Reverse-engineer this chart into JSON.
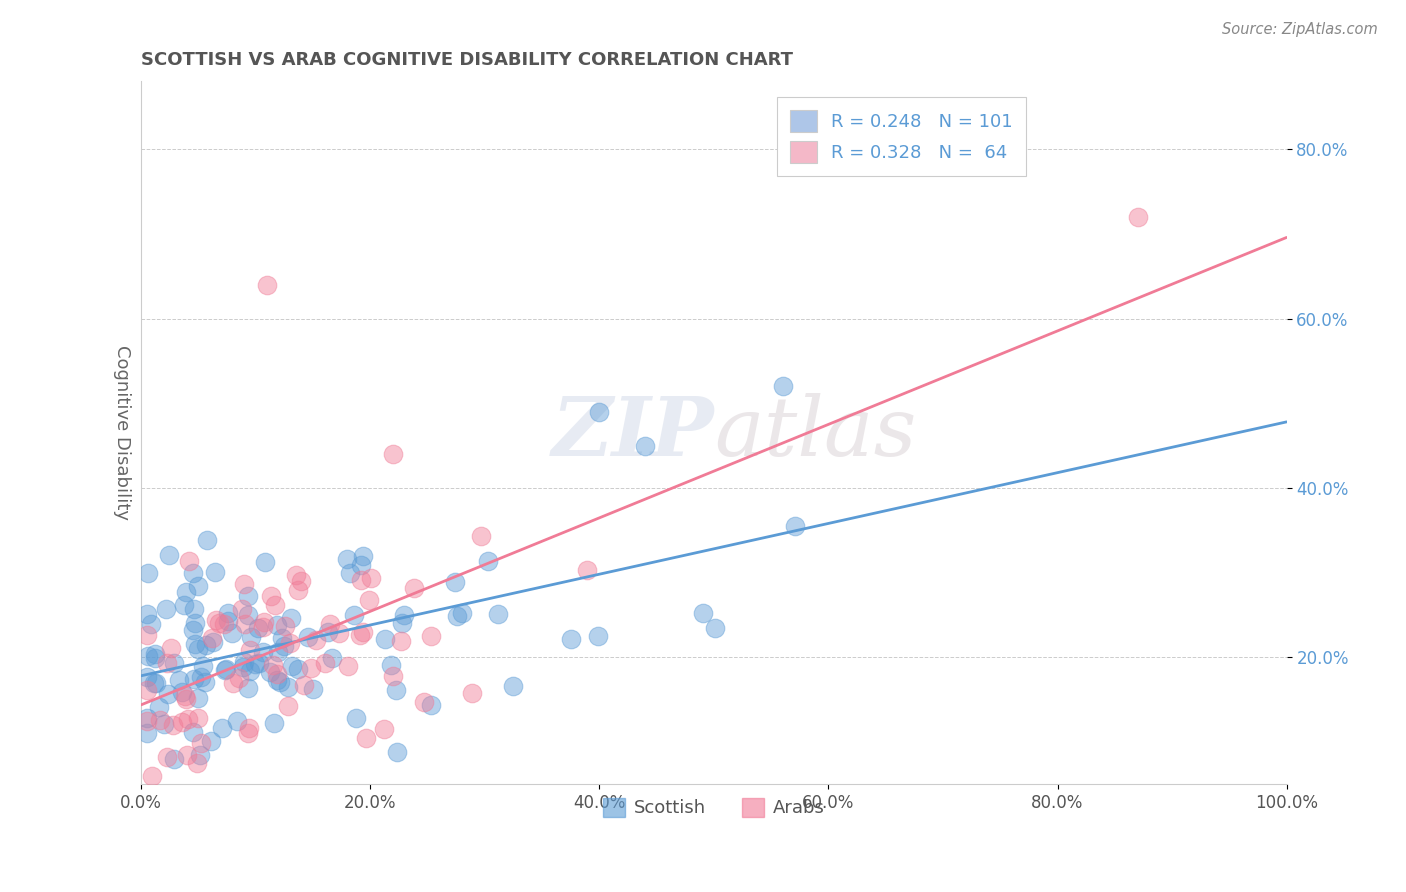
{
  "title": "SCOTTISH VS ARAB COGNITIVE DISABILITY CORRELATION CHART",
  "source": "Source: ZipAtlas.com",
  "ylabel": "Cognitive Disability",
  "xlim": [
    0.0,
    1.0
  ],
  "ylim": [
    0.05,
    0.88
  ],
  "xticks": [
    0.0,
    0.2,
    0.4,
    0.6,
    0.8,
    1.0
  ],
  "xtick_labels": [
    "0.0%",
    "20.0%",
    "40.0%",
    "60.0%",
    "80.0%",
    "100.0%"
  ],
  "ytick_labels": [
    "20.0%",
    "40.0%",
    "60.0%",
    "80.0%"
  ],
  "ytick_positions": [
    0.2,
    0.4,
    0.6,
    0.8
  ],
  "scottish_color": "#5b9bd5",
  "arab_color": "#f07b96",
  "scottish_R": 0.248,
  "arab_R": 0.328,
  "scottish_N": 101,
  "arab_N": 64,
  "watermark_zip": "ZIP",
  "watermark_atlas": "atlas",
  "background_color": "#ffffff",
  "grid_color": "#cccccc",
  "title_color": "#555555",
  "axis_label_color": "#666666",
  "tick_color_blue": "#5b9bd5",
  "source_color": "#888888",
  "legend_box_blue": "#aec6e8",
  "legend_box_pink": "#f4b8c8",
  "legend_text_color": "#5b9bd5"
}
